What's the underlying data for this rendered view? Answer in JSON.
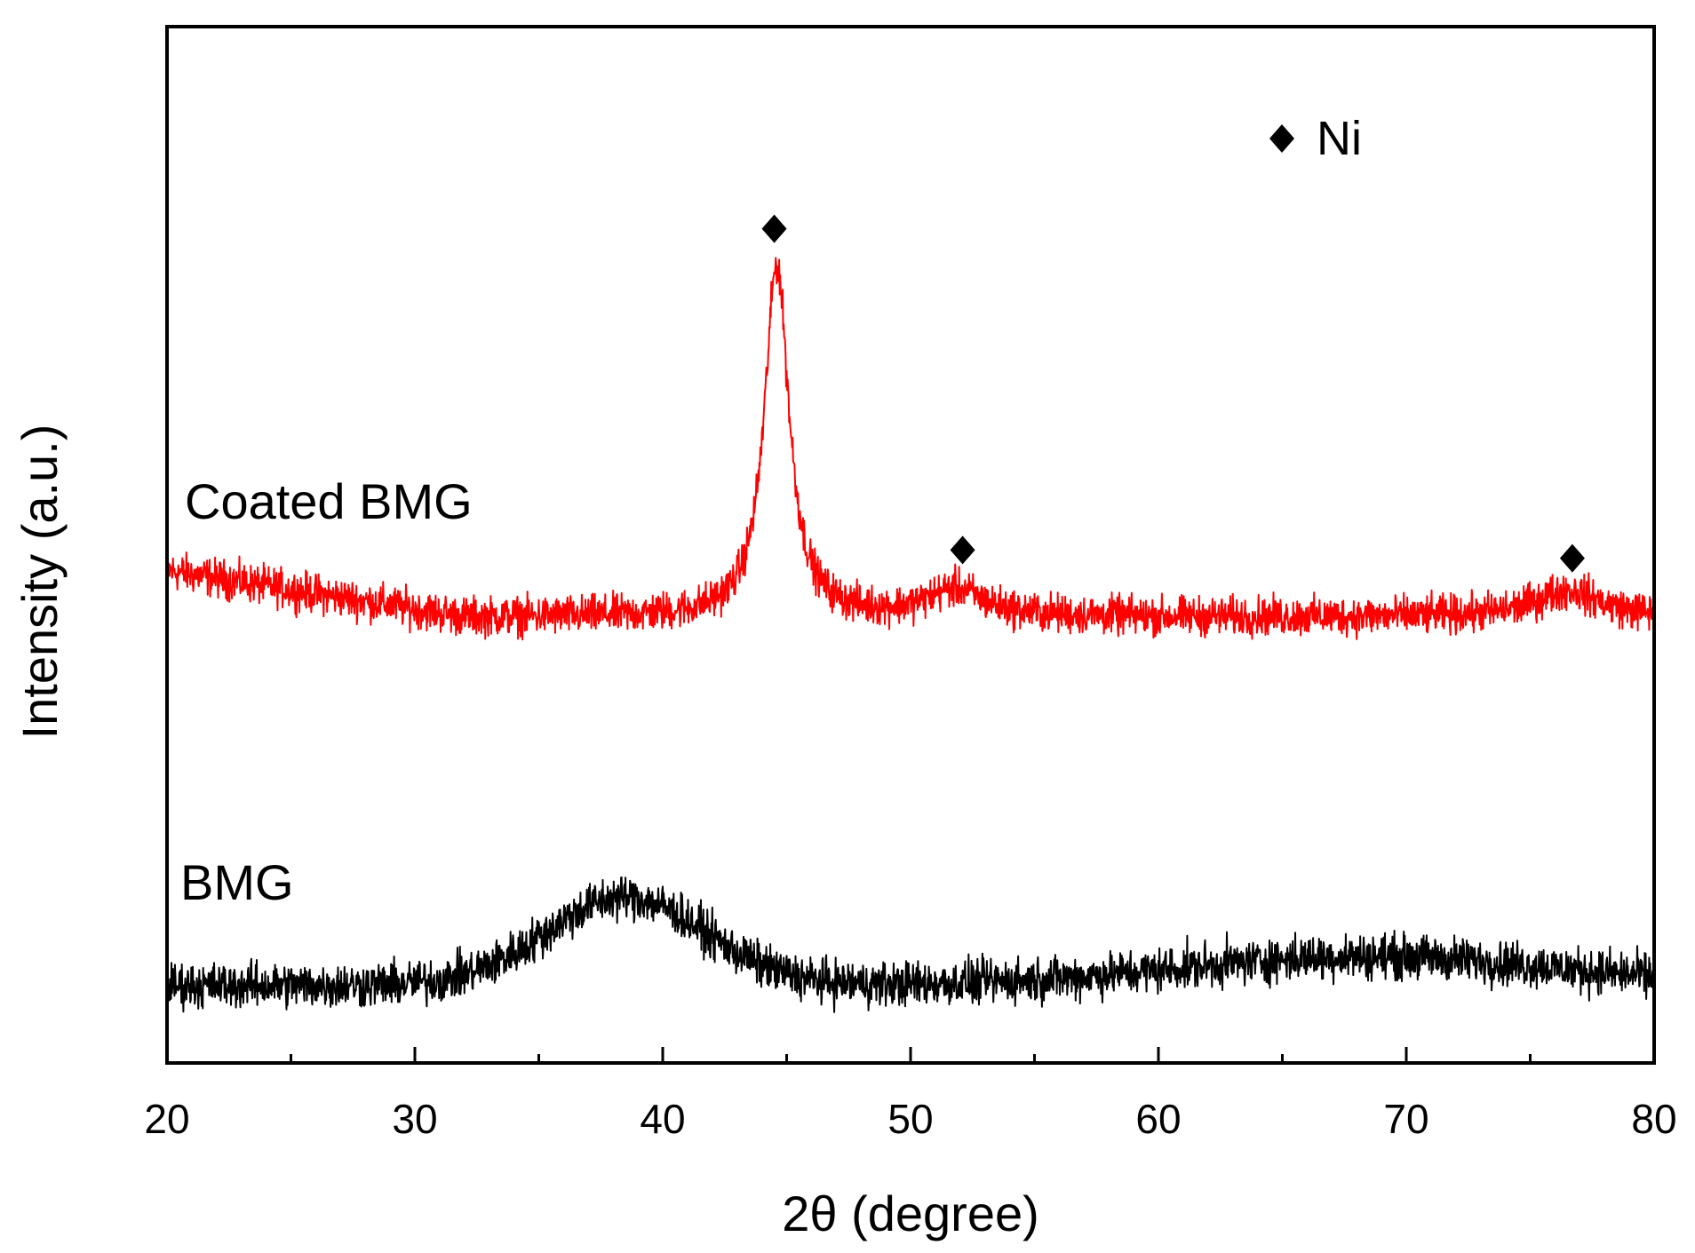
{
  "chart_data": {
    "type": "line",
    "title": "",
    "xlabel": "2θ (degree)",
    "ylabel": "Intensity (a.u.)",
    "xlim": [
      20,
      80
    ],
    "ylim": [
      0,
      100
    ],
    "x_ticks": [
      20,
      30,
      40,
      50,
      60,
      70,
      80
    ],
    "grid": false,
    "legend": {
      "position": "top-right",
      "marker": "diamond",
      "label": "Ni"
    },
    "series": [
      {
        "name": "Coated BMG",
        "color": "#ff0000",
        "baseline": 43,
        "noise": 1.3,
        "components": [
          {
            "type": "slope",
            "start": 20,
            "end": 32,
            "from": 4.5,
            "to": 0
          },
          {
            "type": "peak",
            "center": 44.6,
            "amplitude": 34,
            "width": 0.6
          },
          {
            "type": "peak",
            "center": 51.8,
            "amplitude": 2.6,
            "width": 1.4
          },
          {
            "type": "peak",
            "center": 76.5,
            "amplitude": 2.6,
            "width": 1.6
          }
        ]
      },
      {
        "name": "BMG",
        "color": "#000000",
        "baseline": 7.5,
        "noise": 1.5,
        "components": [
          {
            "type": "broad",
            "center": 38.5,
            "amplitude": 8.5,
            "width": 3.2
          },
          {
            "type": "broad",
            "center": 68.5,
            "amplitude": 2.8,
            "width": 7.5
          }
        ]
      }
    ],
    "annotations": [
      {
        "marker": "diamond",
        "x": 44.5,
        "y": 80.5
      },
      {
        "marker": "diamond",
        "x": 52.1,
        "y": 49.5
      },
      {
        "marker": "diamond",
        "x": 76.7,
        "y": 48.7
      }
    ]
  }
}
